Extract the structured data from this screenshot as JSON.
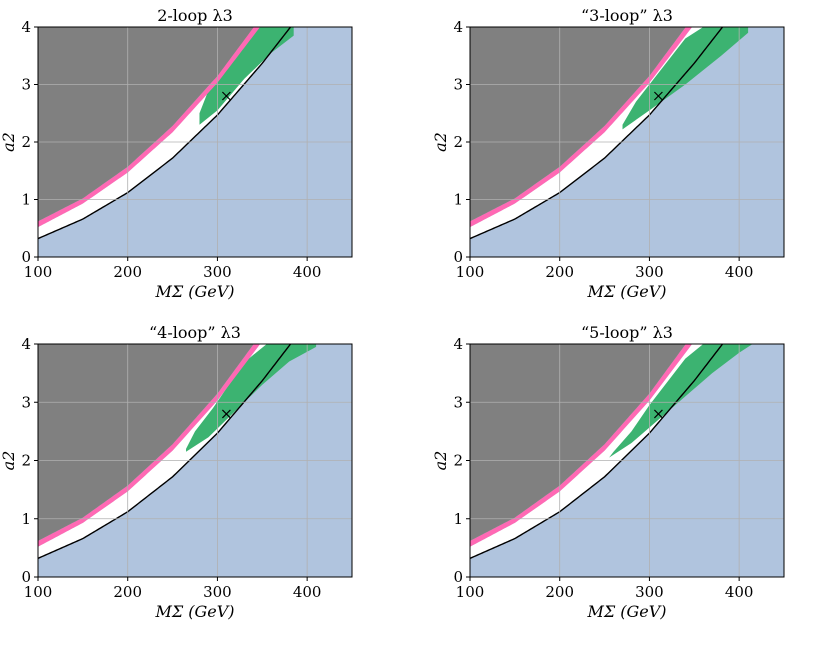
{
  "colors": {
    "background_region": "#b0c4de",
    "excluded_region": "#808080",
    "boundary_band": "#ff69b4",
    "highlight_region": "#3cb371",
    "boundary_line": "#000000",
    "grid": "#b0b0b0"
  },
  "chart_data": [
    {
      "type": "area",
      "title": "2-loop λ3",
      "xlabel": "MΣ (GeV)",
      "ylabel": "a2",
      "xlim": [
        100,
        450
      ],
      "ylim": [
        0,
        4
      ],
      "xticks": [
        "100",
        "200",
        "300",
        "400"
      ],
      "yticks": [
        "0",
        "1",
        "2",
        "3",
        "4"
      ],
      "grid": true,
      "marker": {
        "symbol": "×",
        "x": 310,
        "y": 2.8
      },
      "series": [
        {
          "x": [
            100,
            150,
            200,
            250,
            300,
            350
          ],
          "y": [
            0.62,
            1.02,
            1.57,
            2.28,
            3.15,
            4.2
          ]
        },
        {
          "x": [
            100,
            150,
            200,
            250,
            300,
            350
          ],
          "y": [
            0.52,
            0.93,
            1.47,
            2.17,
            3.03,
            4.05
          ]
        },
        {
          "x": [
            100,
            150,
            200,
            250,
            300,
            350,
            370
          ],
          "y": [
            0.32,
            0.66,
            1.12,
            1.72,
            2.47,
            3.37,
            3.77
          ]
        },
        {
          "x": [
            280,
            300,
            330,
            360,
            385,
            385,
            355,
            340,
            320,
            300,
            290,
            280
          ],
          "y": [
            2.3,
            2.55,
            3.1,
            3.55,
            3.85,
            4.0,
            4.0,
            4.0,
            3.6,
            3.2,
            2.9,
            2.5
          ]
        }
      ]
    },
    {
      "type": "area",
      "title": "“3-loop” λ3",
      "xlabel": "MΣ (GeV)",
      "ylabel": "a2",
      "xlim": [
        100,
        450
      ],
      "ylim": [
        0,
        4
      ],
      "xticks": [
        "100",
        "200",
        "300",
        "400"
      ],
      "yticks": [
        "0",
        "1",
        "2",
        "3",
        "4"
      ],
      "grid": true,
      "marker": {
        "symbol": "×",
        "x": 310,
        "y": 2.8
      },
      "series": [
        {
          "x": [
            100,
            150,
            200,
            250,
            300,
            350
          ],
          "y": [
            0.62,
            1.02,
            1.57,
            2.28,
            3.15,
            4.2
          ]
        },
        {
          "x": [
            100,
            150,
            200,
            250,
            300,
            350
          ],
          "y": [
            0.52,
            0.93,
            1.47,
            2.17,
            3.03,
            4.05
          ]
        },
        {
          "x": [
            100,
            150,
            200,
            250,
            300,
            350,
            370
          ],
          "y": [
            0.32,
            0.66,
            1.12,
            1.72,
            2.47,
            3.37,
            3.77
          ]
        },
        {
          "x": [
            270,
            300,
            340,
            380,
            410,
            410,
            360,
            340,
            320,
            300,
            285,
            270
          ],
          "y": [
            2.22,
            2.55,
            3.0,
            3.5,
            3.9,
            4.0,
            4.0,
            3.8,
            3.4,
            3.0,
            2.7,
            2.3
          ]
        }
      ]
    },
    {
      "type": "area",
      "title": "“4-loop” λ3",
      "xlabel": "MΣ (GeV)",
      "ylabel": "a2",
      "xlim": [
        100,
        450
      ],
      "ylim": [
        0,
        4
      ],
      "xticks": [
        "100",
        "200",
        "300",
        "400"
      ],
      "yticks": [
        "0",
        "1",
        "2",
        "3",
        "4"
      ],
      "grid": true,
      "marker": {
        "symbol": "×",
        "x": 310,
        "y": 2.8
      },
      "series": [
        {
          "x": [
            100,
            150,
            200,
            250,
            300,
            350
          ],
          "y": [
            0.62,
            1.02,
            1.57,
            2.28,
            3.15,
            4.2
          ]
        },
        {
          "x": [
            100,
            150,
            200,
            250,
            300,
            350
          ],
          "y": [
            0.52,
            0.93,
            1.47,
            2.17,
            3.03,
            4.05
          ]
        },
        {
          "x": [
            100,
            150,
            200,
            250,
            300,
            350,
            370
          ],
          "y": [
            0.32,
            0.66,
            1.12,
            1.72,
            2.47,
            3.37,
            3.77
          ]
        },
        {
          "x": [
            265,
            290,
            320,
            350,
            380,
            410,
            410,
            355,
            335,
            315,
            295,
            275,
            265
          ],
          "y": [
            2.15,
            2.4,
            2.85,
            3.3,
            3.7,
            3.95,
            4.0,
            4.0,
            3.75,
            3.35,
            2.9,
            2.5,
            2.2
          ]
        }
      ]
    },
    {
      "type": "area",
      "title": "“5-loop” λ3",
      "xlabel": "MΣ (GeV)",
      "ylabel": "a2",
      "xlim": [
        100,
        450
      ],
      "ylim": [
        0,
        4
      ],
      "xticks": [
        "100",
        "200",
        "300",
        "400"
      ],
      "yticks": [
        "0",
        "1",
        "2",
        "3",
        "4"
      ],
      "grid": true,
      "marker": {
        "symbol": "×",
        "x": 310,
        "y": 2.8
      },
      "series": [
        {
          "x": [
            100,
            150,
            200,
            250,
            300,
            350
          ],
          "y": [
            0.62,
            1.02,
            1.57,
            2.28,
            3.15,
            4.2
          ]
        },
        {
          "x": [
            100,
            150,
            200,
            250,
            300,
            350
          ],
          "y": [
            0.52,
            0.93,
            1.47,
            2.17,
            3.03,
            4.05
          ]
        },
        {
          "x": [
            100,
            150,
            200,
            250,
            300,
            350,
            370
          ],
          "y": [
            0.32,
            0.66,
            1.12,
            1.72,
            2.47,
            3.37,
            3.77
          ]
        },
        {
          "x": [
            255,
            280,
            310,
            340,
            370,
            400,
            415,
            415,
            360,
            340,
            320,
            300,
            280,
            260
          ],
          "y": [
            2.05,
            2.3,
            2.7,
            3.1,
            3.5,
            3.85,
            4.0,
            4.0,
            4.0,
            3.75,
            3.35,
            2.95,
            2.5,
            2.15
          ]
        }
      ]
    }
  ]
}
